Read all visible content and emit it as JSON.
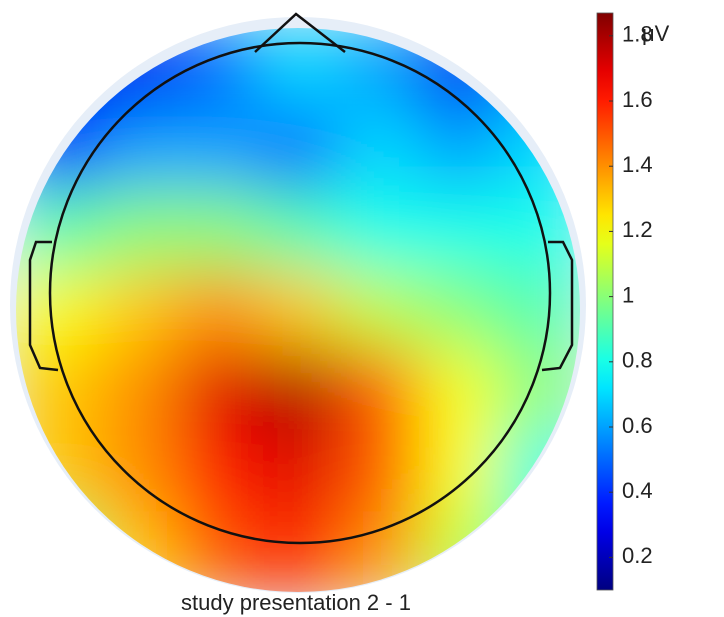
{
  "chart_data": {
    "type": "topoplot",
    "caption": "study presentation 2 - 1",
    "unit": "μV",
    "colormap": "jet",
    "values": [
      [
        0.3,
        0.3,
        0.5,
        0.7,
        0.6,
        0.3,
        0.6
      ],
      [
        0.4,
        0.6,
        0.6,
        0.5,
        0.7,
        0.6,
        0.7
      ],
      [
        0.9,
        1.0,
        1.0,
        0.9,
        0.8,
        0.8,
        0.8
      ],
      [
        1.2,
        1.3,
        1.4,
        1.3,
        1.1,
        1.0,
        0.9
      ],
      [
        1.3,
        1.4,
        1.7,
        1.8,
        1.5,
        1.2,
        1.0
      ],
      [
        1.3,
        1.4,
        1.6,
        1.7,
        1.5,
        1.2,
        0.8
      ],
      [
        1.0,
        1.3,
        1.5,
        1.6,
        1.4,
        1.1,
        0.9
      ]
    ],
    "ylim": [
      0.1,
      1.87
    ],
    "yticks": [
      0.2,
      0.4,
      0.6,
      0.8,
      1,
      1.2,
      1.4,
      1.6,
      1.8
    ]
  }
}
